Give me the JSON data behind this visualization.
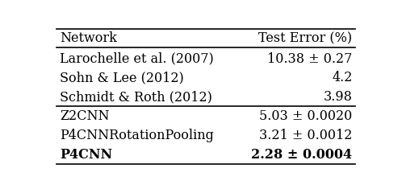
{
  "header": [
    "Network",
    "Test Error (%)"
  ],
  "rows": [
    {
      "network": "Larochelle et al. (2007)",
      "error": "10.38 ± 0.27",
      "bold": false
    },
    {
      "network": "Sohn & Lee (2012)",
      "error": "4.2",
      "bold": false
    },
    {
      "network": "Schmidt & Roth (2012)",
      "error": "3.98",
      "bold": false
    },
    {
      "network": "Z2CNN",
      "error": "5.03 ± 0.0020",
      "bold": false
    },
    {
      "network": "P4CNNRotationPooling",
      "error": "3.21 ± 0.0012",
      "bold": false
    },
    {
      "network": "P4CNN",
      "error": "2.28 ± 0.0004",
      "bold": true
    }
  ],
  "group_break_after": 2,
  "bg_color": "#ffffff",
  "text_color": "#000000",
  "font_size": 11.5,
  "header_font_size": 11.5
}
